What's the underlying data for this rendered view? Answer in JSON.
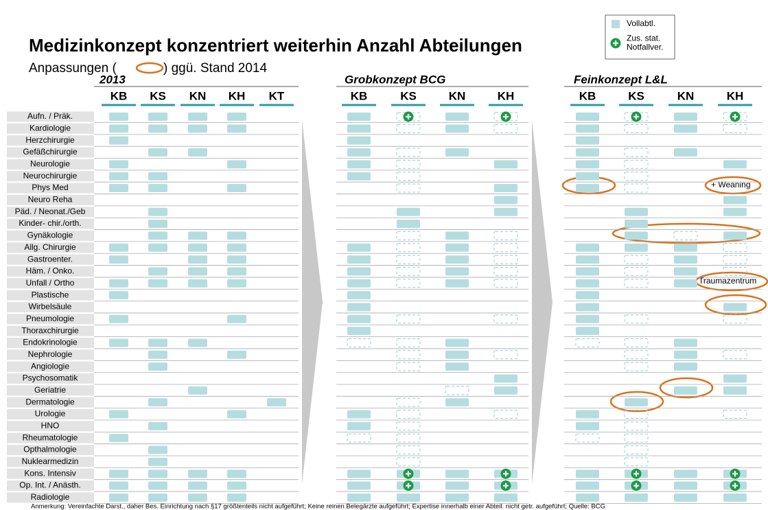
{
  "title": "Medizinkonzept konzentriert weiterhin Anzahl Abteilungen",
  "subtitle": {
    "before": "Anpassungen (",
    "after": ") ggü. Stand 2014"
  },
  "legend": [
    {
      "lines": [
        "Vollabtl."
      ],
      "symbol": "f"
    },
    {
      "lines": [
        "Zus. stat.",
        "Notfallver."
      ],
      "symbol": "p"
    }
  ],
  "rows": [
    "Aufn. / Präk.",
    "Kardiologie",
    "Herzchirurgie",
    "Gefäßchirurgie",
    "Neurologie",
    "Neurochirurgie",
    "Phys Med",
    "Neuro Reha",
    "Päd. / Neonat./Geb",
    "Kinder- chir./orth.",
    "Gynäkologie",
    "Allg. Chirurgie",
    "Gastroenter.",
    "Häm. / Onko.",
    "Unfall / Ortho",
    "Plastische",
    "Wirbelsäule",
    "Pneumologie",
    "Thoraxchirurgie",
    "Endokrinologie",
    "Nephrologie",
    "Angiologie",
    "Psychosomatik",
    "Geriatrie",
    "Dermatologie",
    "Urologie",
    "HNO",
    "Rheumatologie",
    "Opthalmologie",
    "Nuklearmedizin",
    "Kons. Intensiv",
    "Op. Int. / Anästh.",
    "Radiologie"
  ],
  "sections": [
    {
      "title": "2013",
      "columns": [
        "KB",
        "KS",
        "KN",
        "KH",
        "KT"
      ],
      "cells": [
        "ffff-",
        "ffff-",
        "f----",
        "-ff--",
        "f--f-",
        "ff---",
        "ff-f-",
        "-----",
        "-f---",
        "-f---",
        "-fff-",
        "ffff-",
        "f-ff-",
        "-fff-",
        "ffff-",
        "f----",
        "-----",
        "f--f-",
        "-----",
        "fff--",
        "-f-f-",
        "-f---",
        "-----",
        "--f--",
        "-f--f",
        "f--f-",
        "-f---",
        "f----",
        "-f---",
        "-f---",
        "ffff-",
        "ffff-",
        "ffff-"
      ]
    },
    {
      "title": "Grobkonzept BCG",
      "columns": [
        "KB",
        "KS",
        "KN",
        "KH"
      ],
      "cells": [
        "fpfp",
        "fdfd",
        "f---",
        "fdf-",
        "fd-f",
        "fd--",
        "-d-f",
        "---f",
        "-f-f",
        "-f--",
        "-dfd",
        "fdfd",
        "fdfd",
        "fdfd",
        "fdfd",
        "f---",
        "f---",
        "fd-d",
        "f---",
        "ddf-",
        "-dfd",
        "-df-",
        "---f",
        "--df",
        "-df-",
        "fd-d",
        "fd--",
        "dd--",
        "-d--",
        "-d--",
        "fPfP",
        "fPfP",
        "ffff"
      ]
    },
    {
      "title": "Feinkonzept L&L",
      "columns": [
        "KB",
        "KS",
        "KN",
        "KH"
      ],
      "cells": [
        "fpfp",
        "fdfd",
        "f---",
        "fdf-",
        "fd-f",
        "fd--",
        "fd--",
        "---f",
        "-f-f",
        "-f--",
        "-fdf",
        "fffd",
        "fdfd",
        "fdfd",
        "fdf-",
        "f---",
        "f--f",
        "fd-d",
        "f---",
        "ddf-",
        "-dfd",
        "-df-",
        "---f",
        "--ff",
        "-f--",
        "fd-d",
        "fd--",
        "dd--",
        "-d--",
        "-d--",
        "fPfP",
        "fPfP",
        "ffff"
      ]
    }
  ],
  "annotations": [
    "+ Weaning",
    "Traumazentrum"
  ],
  "footnote": "Anmerkung: Vereinfachte Darst., daher Bes. Einrichtung nach §17 größtenteils  nicht aufgeführt; Keine reinen Belegärzte  aufgeführt; Expertise innerhalb einer Abteil. nicht getr. aufgeführt; Quelle: BCG"
}
